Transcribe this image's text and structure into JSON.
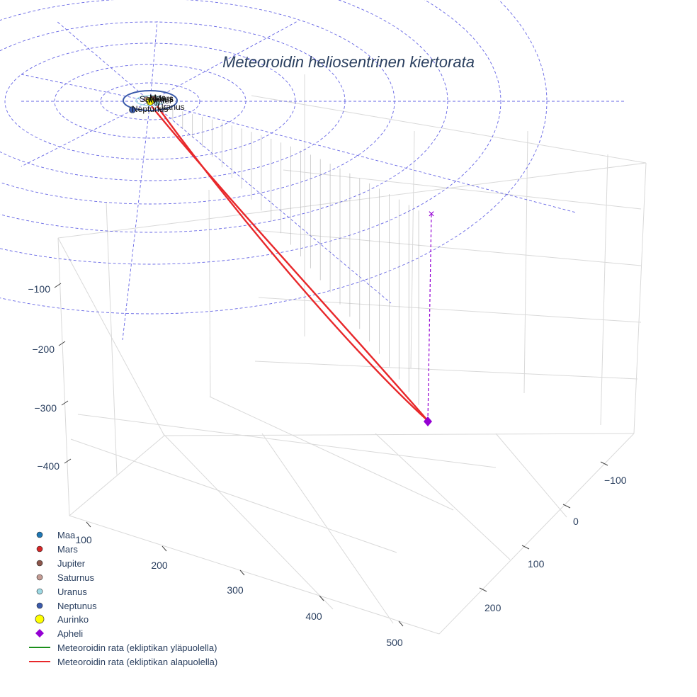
{
  "chart_data": {
    "type": "scatter3d",
    "title": "Meteoroidin heliosentrinen kiertorata",
    "axes": {
      "x": {
        "ticks": [
          "100",
          "200",
          "300",
          "400",
          "500"
        ],
        "range": [
          50,
          550
        ]
      },
      "y": {
        "ticks": [
          "−100",
          "0",
          "100",
          "200"
        ],
        "range": [
          -170,
          280
        ]
      },
      "z": {
        "ticks": [
          "−100",
          "−200",
          "−300",
          "−400"
        ],
        "range": [
          -500,
          0
        ]
      }
    },
    "planets": [
      {
        "name": "Maa",
        "label": "Maa",
        "color": "#1f77b4"
      },
      {
        "name": "Mars",
        "label": "Mars",
        "color": "#d62728"
      },
      {
        "name": "Jupiter",
        "label": "Jupiter",
        "color": "#8c564b"
      },
      {
        "name": "Saturnus",
        "label": "Saturnus",
        "color": "#c49c94"
      },
      {
        "name": "Uranus",
        "label": "Uranus",
        "color": "#9edae5"
      },
      {
        "name": "Neptunus",
        "label": "Neptunus",
        "color": "#3b5bab"
      }
    ],
    "sun": {
      "name": "Aurinko",
      "color": "#ffff00",
      "edge": "#444444"
    },
    "aphelion": {
      "name": "Apheli",
      "color": "#9400d3",
      "marker": "diamond"
    },
    "aphelion_projection_marker": "×",
    "orbit_series": [
      {
        "name": "Meteoroidin rata (ekliptikan yläpuolella)",
        "color": "#1a8f1a"
      },
      {
        "name": "Meteoroidin rata (ekliptikan alapuolella)",
        "color": "#e8282b"
      }
    ],
    "ecliptic_grid_color": "#4a4ae0",
    "legend_position": "bottom-left"
  }
}
